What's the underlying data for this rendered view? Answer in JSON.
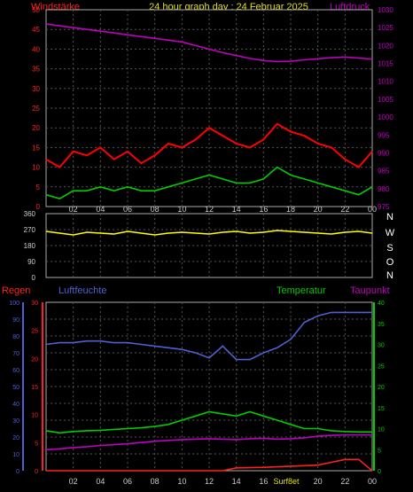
{
  "chart_data": [
    {
      "type": "line",
      "title": "24 hour graph day : 24 Februar 2025",
      "left_label": "Windstärke",
      "right_label": "Luftdruck",
      "left_ticks": [
        "50",
        "45",
        "40",
        "35",
        "30",
        "25",
        "20",
        "15",
        "10",
        "5",
        "0"
      ],
      "right_ticks": [
        "1030",
        "1025",
        "1020",
        "1015",
        "1010",
        "1005",
        "1000",
        "995",
        "990",
        "985",
        "980",
        "975"
      ],
      "x_ticks": [
        "02",
        "04",
        "06",
        "08",
        "10",
        "12",
        "14",
        "16",
        "18",
        "20",
        "22",
        "00"
      ],
      "ylim_left": [
        0,
        50
      ],
      "ylim_right": [
        975,
        1030
      ],
      "grid": true,
      "series": [
        {
          "key": "pressure",
          "color": "#c000c0",
          "x": [
            0,
            1,
            2,
            3,
            4,
            5,
            6,
            7,
            8,
            9,
            10,
            11,
            12,
            13,
            14,
            15,
            16,
            17,
            18,
            19,
            20,
            21,
            22,
            23,
            24
          ],
          "values": [
            1026,
            1025.5,
            1025,
            1024.5,
            1024,
            1023.5,
            1023,
            1022.5,
            1022,
            1021.5,
            1021,
            1020,
            1019,
            1018,
            1017.2,
            1016.4,
            1015.8,
            1015.5,
            1015.6,
            1016,
            1016.3,
            1016.6,
            1016.8,
            1016.5,
            1016.2
          ]
        },
        {
          "key": "gust",
          "color": "#ff0000",
          "x": [
            0,
            1,
            2,
            3,
            4,
            5,
            6,
            7,
            8,
            9,
            10,
            11,
            12,
            13,
            14,
            15,
            16,
            17,
            18,
            19,
            20,
            21,
            22,
            23,
            24
          ],
          "values": [
            12,
            10,
            14,
            13,
            15,
            12,
            14,
            11,
            13,
            16,
            15,
            17,
            20,
            18,
            16,
            15,
            17,
            21,
            19,
            18,
            16,
            15,
            12,
            10,
            14
          ]
        },
        {
          "key": "wind_avg",
          "color": "#00cc00",
          "x": [
            0,
            1,
            2,
            3,
            4,
            5,
            6,
            7,
            8,
            9,
            10,
            11,
            12,
            13,
            14,
            15,
            16,
            17,
            18,
            19,
            20,
            21,
            22,
            23,
            24
          ],
          "values": [
            3,
            2,
            4,
            4,
            5,
            4,
            5,
            4,
            4,
            5,
            6,
            7,
            8,
            7,
            6,
            6,
            7,
            10,
            8,
            7,
            6,
            5,
            4,
            3,
            5
          ]
        }
      ]
    },
    {
      "type": "line",
      "left_ticks": [
        "360",
        "270",
        "180",
        "90",
        "0"
      ],
      "right_ticks": [
        "N",
        "W",
        "S",
        "O",
        "N"
      ],
      "ylim": [
        0,
        360
      ],
      "series": [
        {
          "key": "wind_dir",
          "color": "#ffff00",
          "x": [
            0,
            1,
            2,
            3,
            4,
            5,
            6,
            7,
            8,
            9,
            10,
            11,
            12,
            13,
            14,
            15,
            16,
            17,
            18,
            19,
            20,
            21,
            22,
            23,
            24
          ],
          "values": [
            260,
            250,
            240,
            255,
            250,
            245,
            260,
            250,
            240,
            250,
            255,
            250,
            245,
            255,
            260,
            250,
            255,
            265,
            260,
            255,
            250,
            245,
            255,
            260,
            250
          ]
        }
      ]
    },
    {
      "type": "line",
      "labels": {
        "rain": "Regen",
        "humidity": "Luftfeuchte",
        "temperature": "Temperatur",
        "dewpoint": "Taupunkt",
        "sunrise_sunset": "Surf8et"
      },
      "hum_ticks": [
        "100",
        "90",
        "80",
        "70",
        "60",
        "50",
        "40",
        "30",
        "20",
        "10",
        "0"
      ],
      "rain_ticks": [
        "30",
        "25",
        "20",
        "15",
        "10",
        "5",
        "0"
      ],
      "temp_ticks": [
        "40",
        "35",
        "30",
        "25",
        "20",
        "15",
        "10",
        "5",
        "0"
      ],
      "x_ticks": [
        "02",
        "04",
        "06",
        "08",
        "10",
        "12",
        "14",
        "16",
        "",
        "20",
        "22",
        "00"
      ],
      "ylim_hum": [
        0,
        100
      ],
      "ylim_rain": [
        0,
        30
      ],
      "ylim_temp": [
        0,
        40
      ],
      "grid": true,
      "series": [
        {
          "key": "humidity",
          "color": "#5060d0",
          "x": [
            0,
            1,
            2,
            3,
            4,
            5,
            6,
            7,
            8,
            9,
            10,
            11,
            12,
            13,
            14,
            15,
            16,
            17,
            18,
            19,
            20,
            21,
            22,
            23,
            24
          ],
          "values": [
            75,
            76,
            76,
            77,
            77,
            76,
            76,
            75,
            74,
            73,
            72,
            70,
            67,
            74,
            66,
            66,
            70,
            73,
            78,
            88,
            92,
            94,
            94,
            94,
            94
          ]
        },
        {
          "key": "temperature",
          "color": "#00cc00",
          "x": [
            0,
            1,
            2,
            3,
            4,
            5,
            6,
            7,
            8,
            9,
            10,
            11,
            12,
            13,
            14,
            15,
            16,
            17,
            18,
            19,
            20,
            21,
            22,
            23,
            24
          ],
          "values": [
            9.5,
            9,
            9.3,
            9.5,
            9.6,
            9.8,
            10,
            10.2,
            10.5,
            11,
            12,
            13,
            14,
            13.5,
            13,
            14,
            13,
            12,
            11,
            10,
            10,
            9.5,
            9.3,
            9.2,
            9.2
          ]
        },
        {
          "key": "dewpoint",
          "color": "#c000c0",
          "x": [
            0,
            1,
            2,
            3,
            4,
            5,
            6,
            7,
            8,
            9,
            10,
            11,
            12,
            13,
            14,
            15,
            16,
            17,
            18,
            19,
            20,
            21,
            22,
            23,
            24
          ],
          "values": [
            5,
            5.2,
            5.5,
            5.7,
            6,
            6.2,
            6.4,
            6.7,
            7,
            7.2,
            7.4,
            7.5,
            7.6,
            7.5,
            7.4,
            7.6,
            7.7,
            7.5,
            7.6,
            7.8,
            8.2,
            8.4,
            8.5,
            8.5,
            8.5
          ]
        },
        {
          "key": "rain",
          "color": "#ff2020",
          "x": [
            0,
            2,
            4,
            6,
            8,
            10,
            12,
            13,
            14,
            16,
            18,
            20,
            21,
            22,
            23,
            23.5,
            24
          ],
          "values": [
            0,
            0,
            0,
            0,
            0,
            0,
            0,
            0,
            0.5,
            0.6,
            0.8,
            1,
            1.5,
            2,
            2,
            1,
            0
          ]
        }
      ]
    }
  ]
}
